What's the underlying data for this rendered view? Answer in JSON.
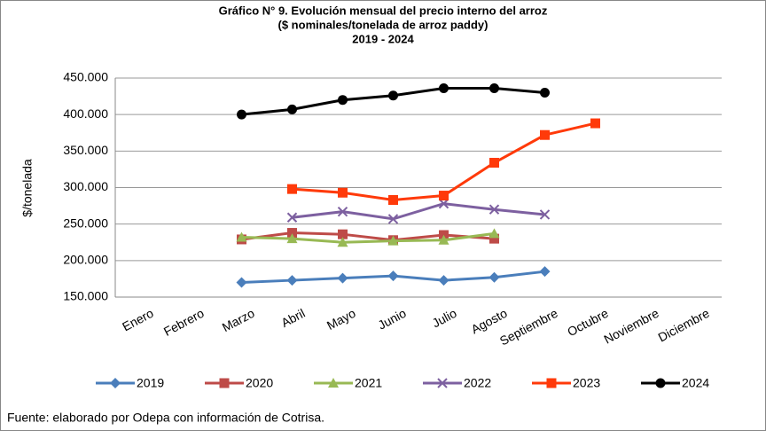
{
  "chart_data": {
    "type": "line",
    "title": [
      "Gráfico N° 9. Evolución mensual del precio interno del arroz",
      "($ nominales/tonelada de arroz paddy)",
      "2019 - 2024"
    ],
    "y_label": "$/tonelada",
    "source": "Fuente: elaborado por Odepa con información de Cotrisa.",
    "categories": [
      "Enero",
      "Febrero",
      "Marzo",
      "Abril",
      "Mayo",
      "Junio",
      "Julio",
      "Agosto",
      "Septiembre",
      "Octubre",
      "Noviembre",
      "Diciembre"
    ],
    "ylim": [
      150000,
      450000
    ],
    "yticks": [
      {
        "value": 150000,
        "label": "150.000"
      },
      {
        "value": 200000,
        "label": "200.000"
      },
      {
        "value": 250000,
        "label": "250.000"
      },
      {
        "value": 300000,
        "label": "300.000"
      },
      {
        "value": 350000,
        "label": "350.000"
      },
      {
        "value": 400000,
        "label": "400.000"
      },
      {
        "value": 450000,
        "label": "450.000"
      }
    ],
    "grid": true,
    "legend": "bottom",
    "series": [
      {
        "name": "2019",
        "color": "#4a7ebb",
        "marker": "diamond",
        "values": [
          null,
          null,
          170000,
          173000,
          176000,
          179000,
          173000,
          177000,
          185000,
          null,
          null,
          null
        ]
      },
      {
        "name": "2020",
        "color": "#be4b48",
        "marker": "square",
        "values": [
          null,
          null,
          229000,
          238000,
          236000,
          228000,
          235000,
          230000,
          null,
          null,
          null,
          null
        ]
      },
      {
        "name": "2021",
        "color": "#98b954",
        "marker": "triangle",
        "values": [
          null,
          null,
          232000,
          230000,
          225000,
          227000,
          228000,
          237000,
          null,
          null,
          null,
          null
        ]
      },
      {
        "name": "2022",
        "color": "#7d60a0",
        "marker": "x",
        "values": [
          null,
          null,
          null,
          259000,
          267000,
          257000,
          278000,
          270000,
          263000,
          null,
          null,
          null
        ]
      },
      {
        "name": "2023",
        "color": "#ff3a0a",
        "marker": "square",
        "values": [
          null,
          null,
          null,
          298000,
          293000,
          283000,
          289000,
          334000,
          372000,
          388000,
          null,
          null
        ]
      },
      {
        "name": "2024",
        "color": "#000000",
        "marker": "circle",
        "values": [
          null,
          null,
          400000,
          407000,
          420000,
          426000,
          436000,
          436000,
          430000,
          null,
          null,
          null
        ]
      }
    ]
  }
}
